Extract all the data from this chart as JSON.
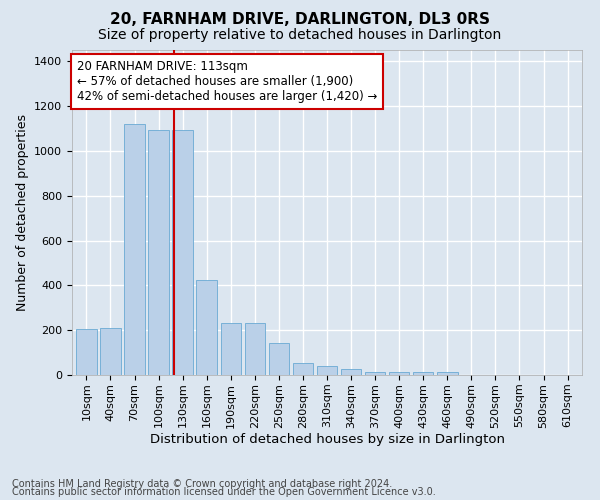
{
  "title": "20, FARNHAM DRIVE, DARLINGTON, DL3 0RS",
  "subtitle": "Size of property relative to detached houses in Darlington",
  "xlabel": "Distribution of detached houses by size in Darlington",
  "ylabel": "Number of detached properties",
  "categories": [
    "10sqm",
    "40sqm",
    "70sqm",
    "100sqm",
    "130sqm",
    "160sqm",
    "190sqm",
    "220sqm",
    "250sqm",
    "280sqm",
    "310sqm",
    "340sqm",
    "370sqm",
    "400sqm",
    "430sqm",
    "460sqm",
    "490sqm",
    "520sqm",
    "550sqm",
    "580sqm",
    "610sqm"
  ],
  "values": [
    205,
    210,
    1120,
    1095,
    1095,
    425,
    230,
    230,
    145,
    55,
    38,
    25,
    13,
    13,
    14,
    13,
    0,
    0,
    0,
    0,
    0
  ],
  "bar_color": "#bad0e8",
  "bar_edge_color": "#6aaad4",
  "vline_x": 3.65,
  "vline_color": "#cc0000",
  "annotation_text": "20 FARNHAM DRIVE: 113sqm\n← 57% of detached houses are smaller (1,900)\n42% of semi-detached houses are larger (1,420) →",
  "annotation_box_color": "#ffffff",
  "annotation_box_edge": "#cc0000",
  "ylim": [
    0,
    1450
  ],
  "yticks": [
    0,
    200,
    400,
    600,
    800,
    1000,
    1200,
    1400
  ],
  "background_color": "#dce6f0",
  "plot_bg_color": "#dce6f0",
  "grid_color": "#ffffff",
  "footer1": "Contains HM Land Registry data © Crown copyright and database right 2024.",
  "footer2": "Contains public sector information licensed under the Open Government Licence v3.0.",
  "title_fontsize": 11,
  "subtitle_fontsize": 10,
  "xlabel_fontsize": 9.5,
  "ylabel_fontsize": 9,
  "tick_fontsize": 8,
  "footer_fontsize": 7
}
